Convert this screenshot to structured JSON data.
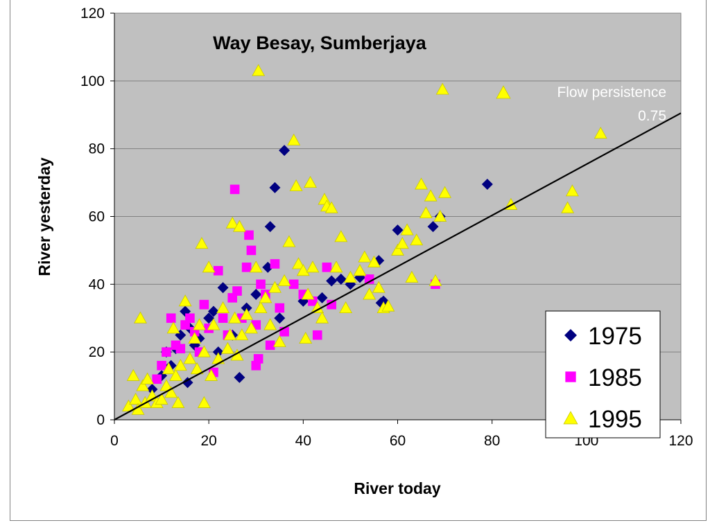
{
  "chart_data": {
    "type": "scatter",
    "title": "Way Besay, Sumberjaya",
    "xlabel": "River today",
    "ylabel": "River yesterday",
    "xlim": [
      0,
      120
    ],
    "ylim": [
      0,
      120
    ],
    "xticks": [
      "0",
      "20",
      "40",
      "60",
      "80",
      "100",
      "120"
    ],
    "yticks": [
      "0",
      "20",
      "40",
      "60",
      "80",
      "100",
      "120"
    ],
    "grid": "horizontal",
    "plot_background": "#c0c0c0",
    "legend_position": "bottom-right",
    "annotation": {
      "line1": "Flow persistence",
      "line2": "0.75"
    },
    "reference_line": {
      "from": [
        0,
        0
      ],
      "to": [
        120,
        90.5
      ]
    },
    "series": [
      {
        "name": "1975",
        "marker": "diamond",
        "color": "#000080",
        "points": [
          [
            8,
            9
          ],
          [
            10,
            13
          ],
          [
            11,
            20
          ],
          [
            12,
            16
          ],
          [
            13,
            21
          ],
          [
            14,
            25
          ],
          [
            15,
            32
          ],
          [
            15.5,
            11
          ],
          [
            16,
            27
          ],
          [
            17,
            22
          ],
          [
            18,
            24
          ],
          [
            20,
            30
          ],
          [
            21,
            32
          ],
          [
            22,
            20
          ],
          [
            23,
            39
          ],
          [
            25,
            25
          ],
          [
            26.5,
            12.5
          ],
          [
            28,
            33
          ],
          [
            30,
            37
          ],
          [
            32.5,
            45
          ],
          [
            33,
            57
          ],
          [
            34,
            68.5
          ],
          [
            36,
            79.5
          ],
          [
            35,
            30
          ],
          [
            40,
            35
          ],
          [
            44,
            36
          ],
          [
            46,
            41
          ],
          [
            48,
            41.5
          ],
          [
            50,
            40
          ],
          [
            52,
            42
          ],
          [
            56,
            47
          ],
          [
            56.5,
            34.5
          ],
          [
            57,
            35
          ],
          [
            60,
            56
          ],
          [
            67.5,
            57
          ],
          [
            69,
            60
          ],
          [
            79,
            69.5
          ]
        ]
      },
      {
        "name": "1985",
        "marker": "square",
        "color": "#ff00ff",
        "points": [
          [
            9,
            12
          ],
          [
            10,
            16
          ],
          [
            11,
            20
          ],
          [
            12,
            30
          ],
          [
            13,
            22
          ],
          [
            14,
            21
          ],
          [
            15,
            28
          ],
          [
            16,
            30
          ],
          [
            17,
            26
          ],
          [
            18,
            20
          ],
          [
            19,
            34
          ],
          [
            20,
            27
          ],
          [
            21,
            14
          ],
          [
            22,
            44
          ],
          [
            23,
            30
          ],
          [
            24,
            25
          ],
          [
            25,
            36
          ],
          [
            25.5,
            68
          ],
          [
            26,
            38
          ],
          [
            27,
            30
          ],
          [
            28,
            45
          ],
          [
            28.5,
            54.5
          ],
          [
            29,
            50
          ],
          [
            30,
            28
          ],
          [
            30,
            16
          ],
          [
            30.5,
            18
          ],
          [
            31,
            40
          ],
          [
            32,
            37
          ],
          [
            33,
            22
          ],
          [
            34,
            46
          ],
          [
            35,
            33
          ],
          [
            36,
            26
          ],
          [
            38,
            40
          ],
          [
            40,
            37
          ],
          [
            42,
            35
          ],
          [
            43,
            25
          ],
          [
            45,
            45
          ],
          [
            46,
            34
          ],
          [
            54,
            41.5
          ],
          [
            68,
            40
          ]
        ]
      },
      {
        "name": "1995",
        "marker": "triangle",
        "color": "#ffff00",
        "points": [
          [
            3,
            4
          ],
          [
            4,
            13
          ],
          [
            4.5,
            6
          ],
          [
            5,
            3
          ],
          [
            5.5,
            30
          ],
          [
            6,
            10
          ],
          [
            6.5,
            5
          ],
          [
            7,
            12
          ],
          [
            8,
            7
          ],
          [
            9,
            5
          ],
          [
            10,
            6
          ],
          [
            11,
            10
          ],
          [
            11.5,
            15
          ],
          [
            12,
            8
          ],
          [
            12.5,
            27
          ],
          [
            13,
            13
          ],
          [
            13.5,
            5
          ],
          [
            14,
            16
          ],
          [
            15,
            35
          ],
          [
            16,
            18
          ],
          [
            17,
            24
          ],
          [
            17.5,
            15
          ],
          [
            18,
            28
          ],
          [
            18.5,
            52
          ],
          [
            19,
            20
          ],
          [
            19,
            5
          ],
          [
            20,
            45
          ],
          [
            20.5,
            13
          ],
          [
            21,
            28
          ],
          [
            22,
            18
          ],
          [
            23,
            33
          ],
          [
            24,
            21
          ],
          [
            24.5,
            25
          ],
          [
            25,
            58
          ],
          [
            25.5,
            30
          ],
          [
            26,
            19
          ],
          [
            26.5,
            57
          ],
          [
            27,
            25
          ],
          [
            28,
            31
          ],
          [
            29,
            27
          ],
          [
            30,
            45
          ],
          [
            30.5,
            103
          ],
          [
            31,
            33
          ],
          [
            32,
            36
          ],
          [
            33,
            28
          ],
          [
            34,
            39
          ],
          [
            35,
            23
          ],
          [
            36,
            41
          ],
          [
            37,
            52.5
          ],
          [
            38,
            82.5
          ],
          [
            38.5,
            69
          ],
          [
            39,
            46
          ],
          [
            40,
            44
          ],
          [
            40.5,
            24
          ],
          [
            41,
            37
          ],
          [
            41.5,
            70
          ],
          [
            42,
            45
          ],
          [
            43,
            33
          ],
          [
            44,
            30
          ],
          [
            44.5,
            65
          ],
          [
            45,
            63
          ],
          [
            46,
            62.5
          ],
          [
            47,
            45
          ],
          [
            48,
            54
          ],
          [
            49,
            33
          ],
          [
            50,
            42
          ],
          [
            52,
            44
          ],
          [
            53,
            48
          ],
          [
            54,
            37
          ],
          [
            55,
            46.5
          ],
          [
            56,
            39
          ],
          [
            57,
            33
          ],
          [
            58,
            33.5
          ],
          [
            60,
            50
          ],
          [
            61,
            52
          ],
          [
            62,
            56
          ],
          [
            63,
            42
          ],
          [
            64,
            53
          ],
          [
            65,
            69.5
          ],
          [
            66,
            61
          ],
          [
            67,
            66
          ],
          [
            68,
            41
          ],
          [
            69,
            60
          ],
          [
            69.5,
            97.5
          ],
          [
            70,
            67
          ],
          [
            84,
            63.5
          ],
          [
            96,
            62.5
          ],
          [
            97,
            67.5
          ],
          [
            103,
            84.5
          ]
        ]
      }
    ]
  }
}
